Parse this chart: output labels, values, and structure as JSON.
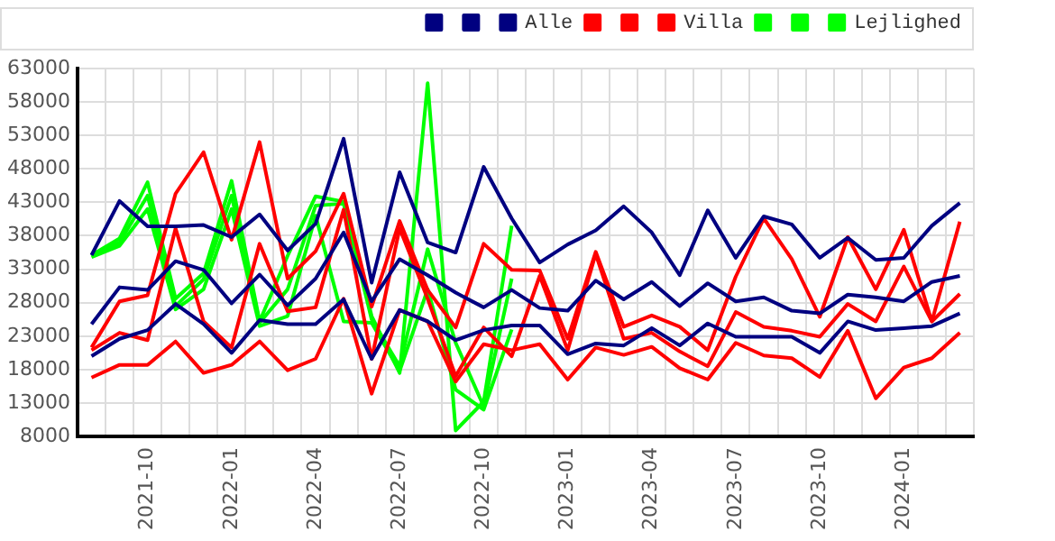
{
  "chart_data": {
    "type": "line",
    "categories": [
      null,
      null,
      "2021-10",
      null,
      null,
      "2022-01",
      null,
      null,
      "2022-04",
      null,
      null,
      "2022-07",
      null,
      null,
      "2022-10",
      null,
      null,
      "2023-01",
      null,
      null,
      "2023-04",
      null,
      null,
      "2023-07",
      null,
      null,
      "2023-10",
      null,
      null,
      "2024-01",
      null,
      null
    ],
    "series": [
      {
        "color": "#000080",
        "values": [
          35100,
          43200,
          39400,
          39400,
          39600,
          37800,
          41200,
          35800,
          39800,
          52500,
          31000,
          47500,
          37000,
          35500,
          48300,
          40600,
          34000,
          36700,
          38800,
          42400,
          38500,
          32100,
          41800,
          34700,
          40900,
          39700,
          34700,
          37700,
          34400,
          34700,
          39500,
          42900
        ]
      },
      {
        "color": "#000080",
        "values": [
          24800,
          30300,
          29900,
          34200,
          32900,
          27900,
          32200,
          27600,
          31600,
          38500,
          28200,
          34500,
          32100,
          29500,
          27300,
          29900,
          27200,
          26800,
          31300,
          28500,
          31100,
          27500,
          30900,
          28200,
          28800,
          26800,
          26400,
          29200,
          28800,
          28200,
          31100,
          32000
        ]
      },
      {
        "name": "Alle",
        "color": "#000080",
        "values": [
          20000,
          22600,
          23900,
          27800,
          24800,
          20500,
          25400,
          24800,
          24800,
          28500,
          19600,
          26900,
          25200,
          22400,
          23900,
          24600,
          24600,
          20300,
          21900,
          21600,
          24200,
          21600,
          24900,
          22900,
          22900,
          22900,
          20500,
          25200,
          23900,
          24200,
          24500,
          26400
        ]
      },
      {
        "color": "#ff0000",
        "values": [
          21300,
          28200,
          29100,
          44300,
          50500,
          37400,
          52000,
          31600,
          35700,
          44300,
          27400,
          40200,
          29900,
          24300,
          36800,
          32900,
          32800,
          22600,
          35600,
          24400,
          26100,
          24400,
          20900,
          31900,
          40600,
          34500,
          25900,
          37800,
          30000,
          38900,
          25200,
          40100
        ]
      },
      {
        "color": "#ff0000",
        "values": [
          20900,
          23500,
          22400,
          39100,
          25200,
          21300,
          36800,
          26700,
          27300,
          41900,
          19600,
          39100,
          28600,
          17000,
          24300,
          20000,
          32000,
          20900,
          35300,
          22600,
          23500,
          20700,
          18500,
          26600,
          24400,
          23800,
          22900,
          27800,
          25200,
          33400,
          25200,
          29300
        ]
      },
      {
        "name": "Villa",
        "color": "#ff0000",
        "values": [
          16800,
          18700,
          18700,
          22200,
          17500,
          18700,
          22200,
          17900,
          19600,
          28600,
          14400,
          26900,
          25200,
          16200,
          21800,
          20900,
          21800,
          16500,
          21300,
          20200,
          21400,
          18200,
          16500,
          22000,
          20100,
          19700,
          16900,
          23800,
          13700,
          18300,
          19700,
          23500
        ]
      },
      {
        "color": "#00ff00",
        "values": [
          35100,
          37600,
          46000,
          28600,
          32400,
          46200,
          25200,
          35000,
          43900,
          43100,
          26000,
          17500,
          60800,
          8900,
          13200,
          39500,
          null,
          null,
          null,
          null,
          null,
          null,
          null,
          null,
          null,
          null,
          null,
          null,
          null,
          null,
          null,
          null
        ]
      },
      {
        "color": "#00ff00",
        "values": [
          35000,
          37000,
          44000,
          27500,
          31500,
          44000,
          25000,
          30000,
          42500,
          42800,
          25500,
          18500,
          36000,
          22000,
          12500,
          31600,
          null,
          null,
          null,
          null,
          null,
          null,
          null,
          null,
          null,
          null,
          null,
          null,
          null,
          null,
          null,
          null
        ]
      },
      {
        "name": "Lejlighed",
        "color": "#00ff00",
        "values": [
          34800,
          36500,
          42000,
          27000,
          30000,
          42000,
          24500,
          26000,
          41000,
          25200,
          25000,
          17800,
          30000,
          15000,
          12000,
          24000,
          null,
          null,
          null,
          null,
          null,
          null,
          null,
          null,
          null,
          null,
          null,
          null,
          null,
          null,
          null,
          null
        ]
      }
    ],
    "ylim": [
      8000,
      63000
    ],
    "yticks": [
      8000,
      13000,
      18000,
      23000,
      28000,
      33000,
      38000,
      43000,
      48000,
      53000,
      58000,
      63000
    ],
    "grid": true,
    "legend": "top right"
  }
}
